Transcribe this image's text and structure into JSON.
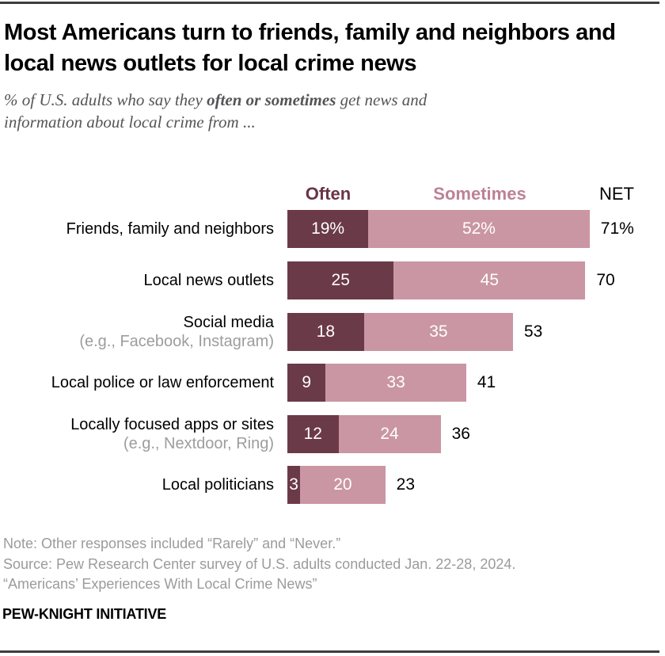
{
  "header": {
    "title": "Most Americans turn to friends, family and neighbors and local news outlets for local crime news",
    "subtitle": {
      "line1_pre": "% of U.S. adults who say they ",
      "line1_bold": "often or sometimes",
      "line1_post": " get news and",
      "line2": "information about local crime from ..."
    }
  },
  "legend": {
    "often": "Often",
    "sometimes": "Sometimes",
    "net": "NET"
  },
  "chart_data": {
    "type": "bar",
    "orientation": "horizontal",
    "stacked": true,
    "title": "Most Americans turn to friends, family and neighbors and local news outlets for local crime news",
    "subtitle": "% of U.S. adults who say they often or sometimes get news and information about local crime from ...",
    "xlim": [
      0,
      100
    ],
    "legend_position": "top",
    "colors": {
      "often": "#6b3a48",
      "sometimes": "#ca96a3"
    },
    "net_header": "NET",
    "rows": [
      {
        "label": "Friends, family and neighbors",
        "sublabel": "",
        "often": 19,
        "sometimes": 52,
        "net": 71,
        "often_text": "19%",
        "sometimes_text": "52%",
        "net_text": "71%"
      },
      {
        "label": "Local news outlets",
        "sublabel": "",
        "often": 25,
        "sometimes": 45,
        "net": 70,
        "often_text": "25",
        "sometimes_text": "45",
        "net_text": "70"
      },
      {
        "label": "Social media",
        "sublabel": "(e.g., Facebook, Instagram)",
        "often": 18,
        "sometimes": 35,
        "net": 53,
        "often_text": "18",
        "sometimes_text": "35",
        "net_text": "53"
      },
      {
        "label": "Local police or law enforcement",
        "sublabel": "",
        "often": 9,
        "sometimes": 33,
        "net": 41,
        "often_text": "9",
        "sometimes_text": "33",
        "net_text": "41"
      },
      {
        "label": "Locally focused apps or sites",
        "sublabel": "(e.g., Nextdoor, Ring)",
        "often": 12,
        "sometimes": 24,
        "net": 36,
        "often_text": "12",
        "sometimes_text": "24",
        "net_text": "36"
      },
      {
        "label": "Local politicians",
        "sublabel": "",
        "often": 3,
        "sometimes": 20,
        "net": 23,
        "often_text": "3",
        "sometimes_text": "20",
        "net_text": "23"
      }
    ]
  },
  "footer": {
    "note": "Note: Other responses included “Rarely” and “Never.”",
    "source": "Source: Pew Research Center survey of U.S. adults conducted Jan. 22-28, 2024.",
    "report": "“Americans’ Experiences With Local Crime News”",
    "brand": "PEW-KNIGHT INITIATIVE"
  }
}
